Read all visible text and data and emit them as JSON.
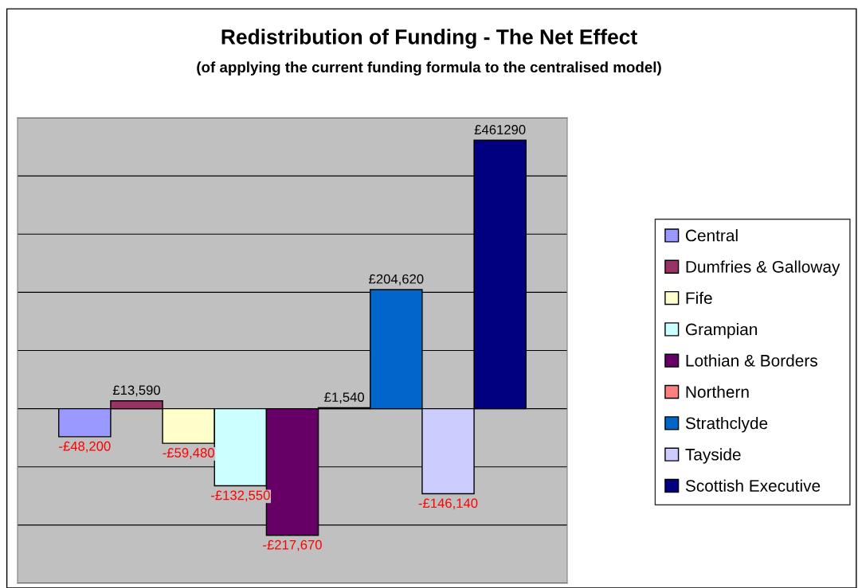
{
  "chart_data": {
    "type": "bar",
    "title": "Redistribution of Funding - The Net Effect",
    "subtitle": "(of applying the current funding formula to the centralised model)",
    "categories": [
      null
    ],
    "series": [
      {
        "name": "Central",
        "color": "#9999ff",
        "values": [
          -48200
        ],
        "value_labels": [
          "-£48,200"
        ]
      },
      {
        "name": "Dumfries & Galloway",
        "color": "#993366",
        "values": [
          13590
        ],
        "value_labels": [
          "£13,590"
        ]
      },
      {
        "name": "Fife",
        "color": "#ffffcc",
        "values": [
          -59480
        ],
        "value_labels": [
          "-£59,480"
        ]
      },
      {
        "name": "Grampian",
        "color": "#ccffff",
        "values": [
          -132550
        ],
        "value_labels": [
          "-£132,550"
        ]
      },
      {
        "name": "Lothian & Borders",
        "color": "#660066",
        "values": [
          -217670
        ],
        "value_labels": [
          "-£217,670"
        ]
      },
      {
        "name": "Northern",
        "color": "#ff8080",
        "values": [
          1540
        ],
        "value_labels": [
          "£1,540"
        ]
      },
      {
        "name": "Strathclyde",
        "color": "#0066cc",
        "values": [
          204620
        ],
        "value_labels": [
          "£204,620"
        ]
      },
      {
        "name": "Tayside",
        "color": "#ccccff",
        "values": [
          -146140
        ],
        "value_labels": [
          "-£146,140"
        ]
      },
      {
        "name": "Scottish Executive",
        "color": "#000080",
        "values": [
          461290
        ],
        "value_labels": [
          "£461290"
        ]
      }
    ],
    "ylim": [
      -300000,
      500000
    ],
    "yticks": [
      {
        "value": -300000,
        "label": null
      },
      {
        "value": -200000,
        "label": null
      },
      {
        "value": -100000,
        "label": null
      },
      {
        "value": 0,
        "label": null
      },
      {
        "value": 100000,
        "label": null
      },
      {
        "value": 200000,
        "label": null
      },
      {
        "value": 300000,
        "label": null
      },
      {
        "value": 400000,
        "label": null
      },
      {
        "value": 500000,
        "label": null
      }
    ],
    "grid": "y",
    "legend": "right"
  }
}
